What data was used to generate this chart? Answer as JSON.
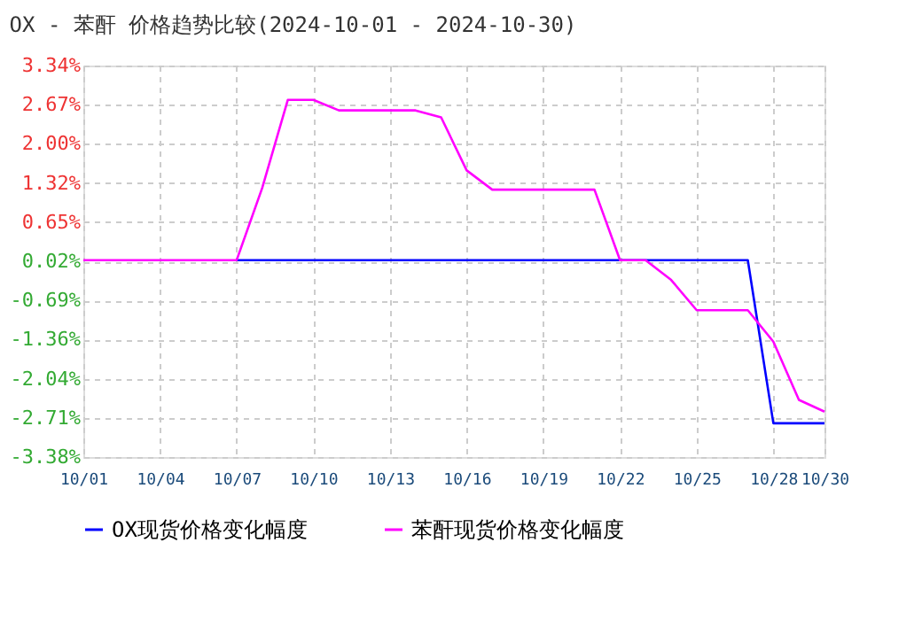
{
  "chart_data": {
    "type": "line",
    "title": "OX - 苯酐 价格趋势比较(2024-10-01 - 2024-10-30)",
    "x": [
      "2024-10-01",
      "2024-10-02",
      "2024-10-03",
      "2024-10-04",
      "2024-10-05",
      "2024-10-06",
      "2024-10-07",
      "2024-10-08",
      "2024-10-09",
      "2024-10-10",
      "2024-10-11",
      "2024-10-12",
      "2024-10-13",
      "2024-10-14",
      "2024-10-15",
      "2024-10-16",
      "2024-10-17",
      "2024-10-18",
      "2024-10-19",
      "2024-10-20",
      "2024-10-21",
      "2024-10-22",
      "2024-10-23",
      "2024-10-24",
      "2024-10-25",
      "2024-10-26",
      "2024-10-27",
      "2024-10-28",
      "2024-10-29",
      "2024-10-30"
    ],
    "series": [
      {
        "name": "OX现货价格变化幅度",
        "color": "#0000ff",
        "values": [
          null,
          null,
          null,
          null,
          null,
          null,
          0,
          0,
          0,
          0,
          0,
          0,
          0,
          0,
          0,
          0,
          0,
          0,
          0,
          0,
          0,
          0,
          0,
          0,
          0,
          0,
          0,
          -2.8,
          -2.8,
          -2.8
        ]
      },
      {
        "name": "苯酐现货价格变化幅度",
        "color": "#ff00ff",
        "values": [
          0,
          0,
          0,
          0,
          0,
          0,
          0,
          1.24,
          2.75,
          2.75,
          2.57,
          2.57,
          2.57,
          2.57,
          2.45,
          1.54,
          1.21,
          1.21,
          1.21,
          1.21,
          1.21,
          0,
          0,
          -0.34,
          -0.86,
          -0.86,
          -0.86,
          -1.4,
          -2.4,
          -2.6
        ]
      }
    ],
    "xlim": [
      "2024-10-01",
      "2024-10-30"
    ],
    "xticks": [
      {
        "value": "2024-10-01",
        "label": "10/01"
      },
      {
        "value": "2024-10-04",
        "label": "10/04"
      },
      {
        "value": "2024-10-07",
        "label": "10/07"
      },
      {
        "value": "2024-10-10",
        "label": "10/10"
      },
      {
        "value": "2024-10-13",
        "label": "10/13"
      },
      {
        "value": "2024-10-16",
        "label": "10/16"
      },
      {
        "value": "2024-10-19",
        "label": "10/19"
      },
      {
        "value": "2024-10-22",
        "label": "10/22"
      },
      {
        "value": "2024-10-25",
        "label": "10/25"
      },
      {
        "value": "2024-10-28",
        "label": "10/28"
      },
      {
        "value": "2024-10-30",
        "label": "10/30"
      }
    ],
    "ylim": [
      -3.38,
      3.34
    ],
    "yticks": [
      {
        "value": 3.34,
        "label": "3.34%"
      },
      {
        "value": 2.67,
        "label": "2.67%"
      },
      {
        "value": 2.0,
        "label": "2.00%"
      },
      {
        "value": 1.32,
        "label": "1.32%"
      },
      {
        "value": 0.65,
        "label": "0.65%"
      },
      {
        "value": -0.02,
        "label": "0.02%"
      },
      {
        "value": -0.69,
        "label": "-0.69%"
      },
      {
        "value": -1.36,
        "label": "-1.36%"
      },
      {
        "value": -2.04,
        "label": "-2.04%"
      },
      {
        "value": -2.71,
        "label": "-2.71%"
      },
      {
        "value": -3.38,
        "label": "-3.38%"
      }
    ],
    "grid": true,
    "legend": "bottom",
    "marker": "none",
    "line_style": "solid"
  }
}
